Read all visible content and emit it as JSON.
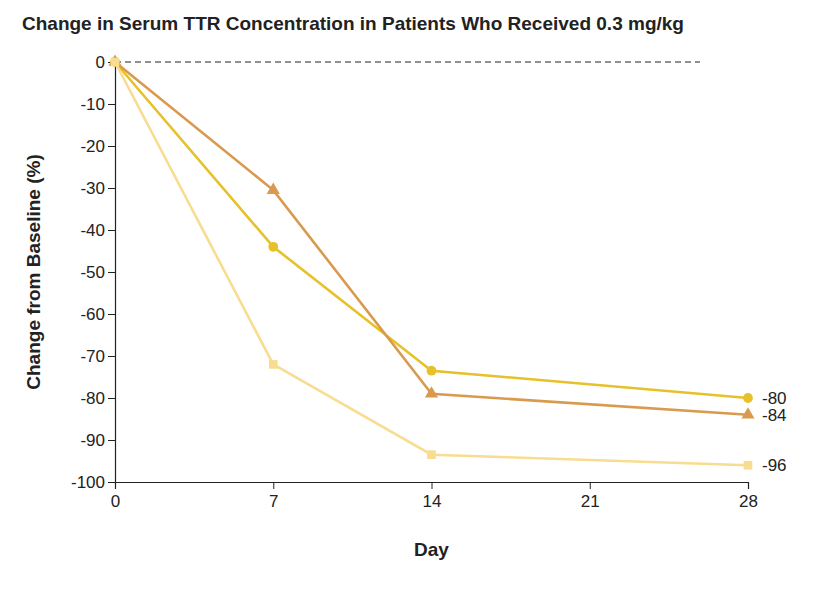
{
  "chart_data": {
    "type": "line",
    "title": "Change in Serum TTR Concentration in Patients Who Received 0.3 mg/kg",
    "x_label": "Day",
    "y_label": "Change from Baseline (%)",
    "x": [
      0,
      7,
      14,
      28
    ],
    "xlim": [
      0,
      28
    ],
    "xticks": [
      0,
      7,
      14,
      21,
      28
    ],
    "ylim": [
      -100,
      0
    ],
    "yticks": [
      0,
      -10,
      -20,
      -30,
      -40,
      -50,
      -60,
      -70,
      -80,
      -90,
      -100
    ],
    "grid": false,
    "data_labels": true,
    "series": [
      {
        "color": "#e6c12a",
        "marker": "circle",
        "values": [
          0,
          -44,
          -73.5,
          -80
        ],
        "value_labels": [
          null,
          null,
          null,
          "-80"
        ]
      },
      {
        "color": "#d99a4e",
        "marker": "triangle",
        "values": [
          0,
          -30.5,
          -79,
          -84
        ],
        "value_labels": [
          null,
          null,
          null,
          "-84"
        ]
      },
      {
        "color": "#f8dc8f",
        "marker": "square",
        "values": [
          0,
          -72,
          -93.5,
          -96
        ],
        "value_labels": [
          null,
          null,
          null,
          "-96"
        ]
      }
    ]
  }
}
